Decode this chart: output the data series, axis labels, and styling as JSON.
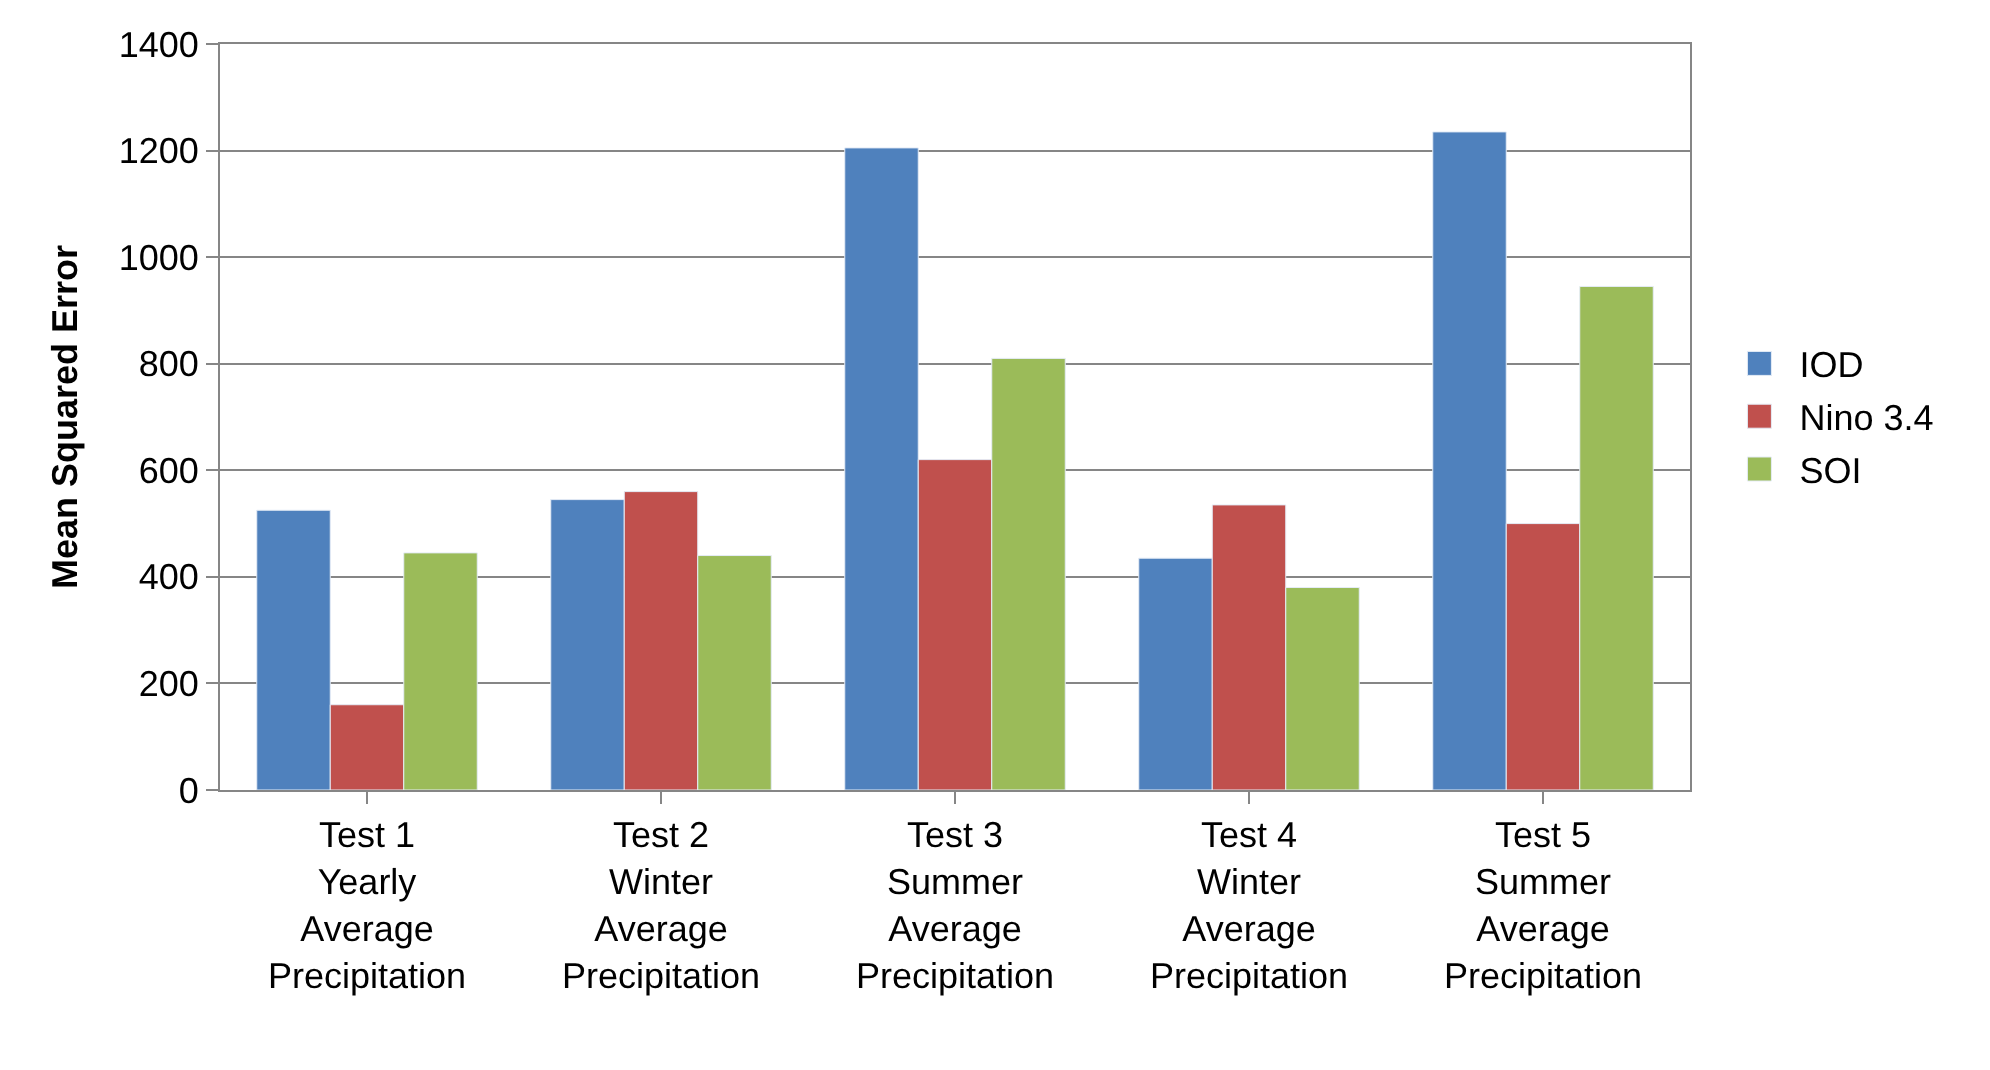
{
  "chart_data": {
    "type": "bar",
    "ylabel": "Mean Squared Error",
    "categories": [
      "Test 1\nYearly\nAverage\nPrecipitation",
      "Test 2\nWinter\nAverage\nPrecipitation",
      "Test 3\nSummer\nAverage\nPrecipitation",
      "Test 4\nWinter\nAverage\nPrecipitation",
      "Test 5\nSummer\nAverage\nPrecipitation"
    ],
    "series": [
      {
        "name": "IOD",
        "color": "#4f81bd",
        "values": [
          525,
          545,
          1205,
          435,
          1235
        ]
      },
      {
        "name": "Nino 3.4",
        "color": "#c0504d",
        "values": [
          160,
          560,
          620,
          535,
          500
        ]
      },
      {
        "name": "SOI",
        "color": "#9bbb59",
        "values": [
          445,
          440,
          810,
          380,
          945
        ]
      }
    ],
    "ylim": [
      0,
      1400
    ],
    "yticks": [
      0,
      200,
      400,
      600,
      800,
      1000,
      1200,
      1400
    ],
    "grid": "y",
    "legend": "right"
  }
}
